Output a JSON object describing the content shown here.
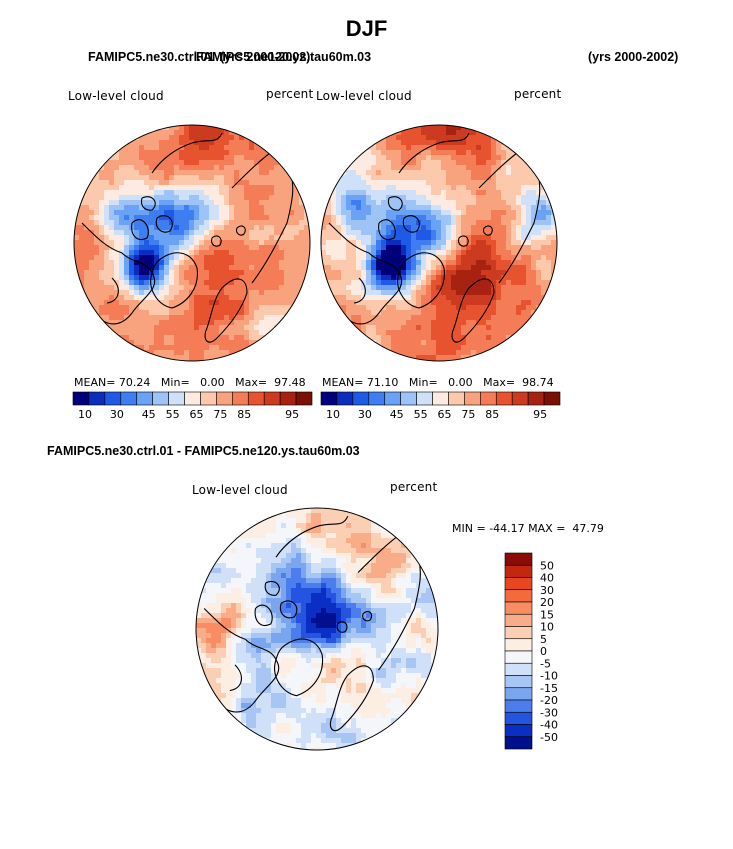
{
  "title": "DJF",
  "panel_titles": {
    "left": "FAMIPC5.ne30.ctrl.01",
    "left_years": "(yrs 2000-2002)",
    "right": "FAMIPC5.ne120.ys.tau60m.03",
    "right_years": "(yrs 2000-2002)",
    "diff": "FAMIPC5.ne30.ctrl.01 - FAMIPC5.ne120.ys.tau60m.03"
  },
  "chart_data": [
    {
      "type": "heatmap",
      "projection": "polar stereographic (Arctic)",
      "variable": "Low-level cloud",
      "units": "percent",
      "stats": {
        "mean_label": "MEAN=",
        "mean": "70.24",
        "min_label": "Min=",
        "min": "0.00",
        "max_label": "Max=",
        "max": "97.48"
      },
      "colorbar": {
        "levels": [
          "10",
          "30",
          "45",
          "55",
          "65",
          "75",
          "85",
          "95"
        ],
        "colors": [
          "#00007a",
          "#0a2dbf",
          "#1e5ae6",
          "#3f7ef0",
          "#6aa2f5",
          "#9ec4f7",
          "#cfe1f8",
          "#fdeae0",
          "#fcc9ad",
          "#f9a37e",
          "#f47d57",
          "#e8532f",
          "#cc3a1f",
          "#a82212",
          "#7a0f05"
        ]
      }
    },
    {
      "type": "heatmap",
      "projection": "polar stereographic (Arctic)",
      "variable": "Low-level cloud",
      "units": "percent",
      "stats": {
        "mean_label": "MEAN=",
        "mean": "71.10",
        "min_label": "Min=",
        "min": "0.00",
        "max_label": "Max=",
        "max": "98.74"
      },
      "colorbar": {
        "levels": [
          "10",
          "30",
          "45",
          "55",
          "65",
          "75",
          "85",
          "95"
        ],
        "colors": [
          "#00007a",
          "#0a2dbf",
          "#1e5ae6",
          "#3f7ef0",
          "#6aa2f5",
          "#9ec4f7",
          "#cfe1f8",
          "#fdeae0",
          "#fcc9ad",
          "#f9a37e",
          "#f47d57",
          "#e8532f",
          "#cc3a1f",
          "#a82212",
          "#7a0f05"
        ]
      }
    },
    {
      "type": "heatmap",
      "projection": "polar stereographic (Arctic)",
      "variable": "Low-level cloud",
      "units": "percent",
      "minmax": {
        "min_label": "MIN =",
        "min": "-44.17",
        "max_label": "MAX =",
        "max": "47.79"
      },
      "colorbar": {
        "levels": [
          "50",
          "40",
          "30",
          "20",
          "15",
          "10",
          "5",
          "0",
          "-5",
          "-10",
          "-15",
          "-20",
          "-30",
          "-40",
          "-50"
        ],
        "colors": [
          "#8a0c05",
          "#c2270f",
          "#e8461f",
          "#f56a3c",
          "#f88c62",
          "#f9ac88",
          "#fbcfb4",
          "#fdeee4",
          "#f4f6fa",
          "#cfe0f8",
          "#a8c6f4",
          "#7aa6f0",
          "#4b7eec",
          "#2454e0",
          "#0b2fc4",
          "#00108f"
        ]
      }
    }
  ]
}
